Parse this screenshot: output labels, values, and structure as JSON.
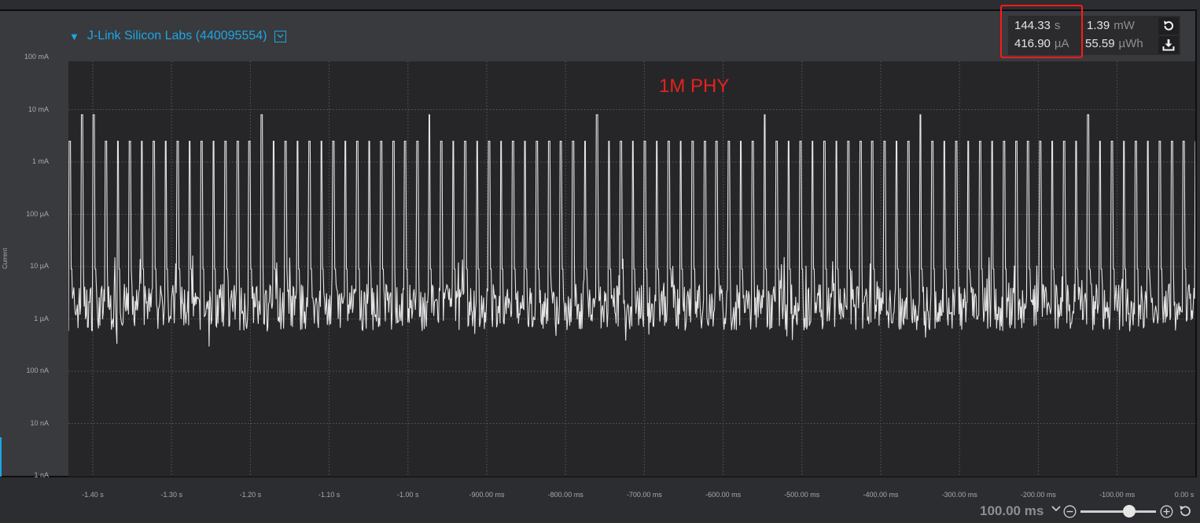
{
  "device": {
    "name": "J-Link Silicon Labs (440095554)"
  },
  "stats": {
    "time_value": "144.33",
    "time_unit": "s",
    "current_value": "416.90",
    "current_unit": "µA",
    "power_value": "1.39",
    "power_unit": "mW",
    "energy_value": "55.59",
    "energy_unit": "µWh"
  },
  "icons": {
    "reset": "reset-icon",
    "download": "download-icon"
  },
  "colors": {
    "accent": "#1ca6e6",
    "highlight": "#ff1a1a",
    "trace": "#e6e6e6",
    "annotation": "#e8211c"
  },
  "annotation": "1M PHY",
  "chart_data": {
    "type": "line",
    "ylabel": "Current",
    "yscale": "log",
    "ylim": [
      "1 nA",
      "100 mA"
    ],
    "y_tick_labels": [
      "100 mA",
      "10 mA",
      "1 mA",
      "100 µA",
      "10 µA",
      "1 µA",
      "100 nA",
      "10 nA",
      "1 nA"
    ],
    "x_tick_labels": [
      "-1.40 s",
      "-1.30 s",
      "-1.20 s",
      "-1.10 s",
      "-1.00 s",
      "-900.00 ms",
      "-800.00 ms",
      "-700.00 ms",
      "-600.00 ms",
      "-500.00 ms",
      "-400.00 ms",
      "-300.00 ms",
      "-200.00 ms",
      "-100.00 ms",
      "0.00 s"
    ],
    "xlim_s": [
      -1.43,
      0
    ],
    "grid": true,
    "series": [
      {
        "baseline_current_A": 1.5e-06,
        "pulse_current_A": 0.0025,
        "pulse_period_s": 0.0152,
        "large_pulse_current_A": 0.008,
        "large_pulse_period_s": 0.21
      }
    ]
  },
  "zoom": {
    "label": "100.00 ms",
    "level": 0.65
  }
}
